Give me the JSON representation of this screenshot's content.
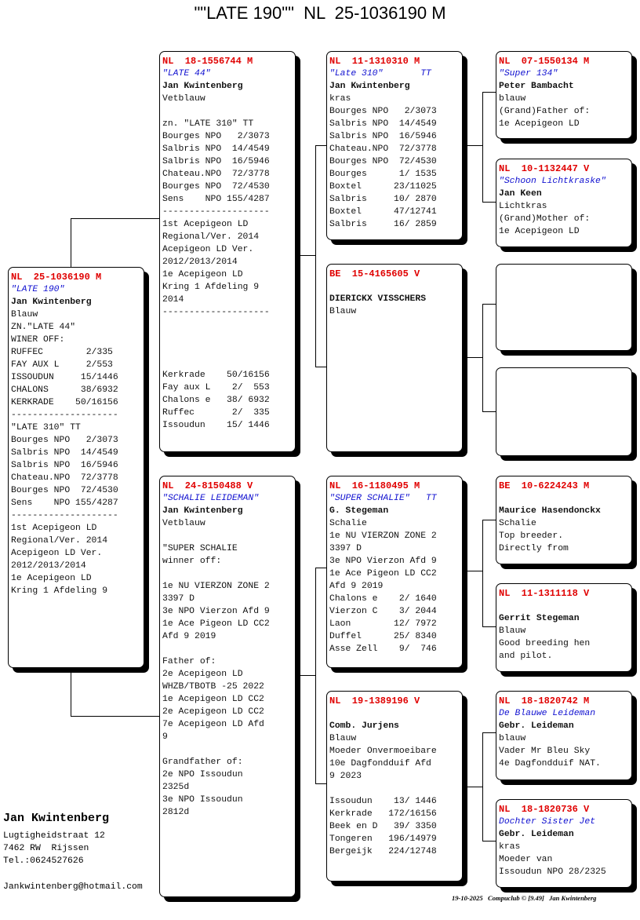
{
  "title": "\"\"LATE 190\"\"  NL  25-1036190 M",
  "boxes": [
    {
      "id": "subject",
      "header": "NL  25-1036190 M",
      "name": "\"LATE 190\"",
      "owner": "Jan Kwintenberg",
      "lines": [
        "Blauw",
        "ZN.\"LATE 44\"",
        "WINER OFF:",
        "RUFFEC        2/335",
        "FAY AUX L     2/553",
        "ISSOUDUN     15/1446",
        "CHALONS      38/6932",
        "KERKRADE    50/16156",
        "--------------------",
        "\"LATE 310\" TT",
        "Bourges NPO   2/3073",
        "Salbris NPO  14/4549",
        "Salbris NPO  16/5946",
        "Chateau.NPO  72/3778",
        "Bourges NPO  72/4530",
        "Sens    NPO 155/4287",
        "--------------------",
        "1st Acepigeon LD",
        "Regional/Ver. 2014",
        "Acepigeon LD Ver.",
        "2012/2013/2014",
        "1e Acepigeon LD",
        "Kring 1 Afdeling 9"
      ]
    },
    {
      "id": "sire",
      "header": "NL  18-1556744 M",
      "name": "\"LATE 44\"",
      "owner": "Jan Kwintenberg",
      "lines": [
        "Vetblauw",
        "",
        "zn. \"LATE 310\" TT",
        "Bourges NPO   2/3073",
        "Salbris NPO  14/4549",
        "Salbris NPO  16/5946",
        "Chateau.NPO  72/3778",
        "Bourges NPO  72/4530",
        "Sens    NPO 155/4287",
        "--------------------",
        "1st Acepigeon LD",
        "Regional/Ver. 2014",
        "Acepigeon LD Ver.",
        "2012/2013/2014",
        "1e Acepigeon LD",
        "Kring 1 Afdeling 9",
        "2014",
        "--------------------",
        "",
        "",
        "",
        "",
        "Kerkrade    50/16156",
        "Fay aux L    2/  553",
        "Chalons e   38/ 6932",
        "Ruffec       2/  335",
        "Issoudun    15/ 1446"
      ]
    },
    {
      "id": "dam",
      "header": "NL  24-8150488 V",
      "name": "\"SCHALIE LEIDEMAN\"",
      "owner": "Jan Kwintenberg",
      "lines": [
        "Vetblauw",
        "",
        "\"SUPER SCHALIE",
        "winner off:",
        "",
        "1e NU VIERZON ZONE 2",
        "3397 D",
        "3e NPO Vierzon Afd 9",
        "1e Ace Pigeon LD CC2",
        "Afd 9 2019",
        "",
        "Father of:",
        "2e Acepigeon LD",
        "WHZB/TBOTB -25 2022",
        "1e Acepigeon LD CC2",
        "2e Acepigeon LD CC2",
        "7e Acepigeon LD Afd",
        "9",
        "",
        "Grandfather of:",
        "2e NPO Issoudun",
        "2325d",
        "3e NPO Issoudun",
        "2812d"
      ]
    },
    {
      "id": "sire-sire",
      "header": "NL  11-1310310 M",
      "name": "\"Late 310\"       TT",
      "owner": "Jan Kwintenberg",
      "lines": [
        "kras",
        "Bourges NPO   2/3073",
        "Salbris NPO  14/4549",
        "Salbris NPO  16/5946",
        "Chateau.NPO  72/3778",
        "Bourges NPO  72/4530",
        "Bourges      1/ 1535",
        "Boxtel      23/11025",
        "Salbris     10/ 2870",
        "Boxtel      47/12741",
        "Salbris     16/ 2859"
      ]
    },
    {
      "id": "sire-dam",
      "header": "BE  15-4165605 V",
      "name": "",
      "owner": "DIERICKX VISSCHERS",
      "lines": [
        "Blauw"
      ]
    },
    {
      "id": "dam-sire",
      "header": "NL  16-1180495 M",
      "name": "\"SUPER SCHALIE\"   TT",
      "owner": "G. Stegeman",
      "lines": [
        "Schalie",
        "1e NU VIERZON ZONE 2",
        "3397 D",
        "3e NPO Vierzon Afd 9",
        "1e Ace Pigeon LD CC2",
        "Afd 9 2019",
        "Chalons e    2/ 1640",
        "Vierzon C    3/ 2044",
        "Laon        12/ 7972",
        "Duffel      25/ 8340",
        "Asse Zell    9/  746"
      ]
    },
    {
      "id": "dam-dam",
      "header": "NL  19-1389196 V",
      "name": "",
      "owner": "Comb. Jurjens",
      "lines": [
        "Blauw",
        "Moeder Onvermoeibare",
        "10e Dagfondduif Afd",
        "9 2023",
        "",
        "Issoudun    13/ 1446",
        "Kerkrade   172/16156",
        "Beek en D   39/ 3350",
        "Tongeren   196/14979",
        "Bergeijk   224/12748"
      ]
    },
    {
      "id": "sss",
      "header": "NL  07-1550134 M",
      "name": "\"Super 134\"",
      "owner": "Peter Bambacht",
      "lines": [
        "blauw",
        "(Grand)Father of:",
        "1e Acepigeon LD"
      ]
    },
    {
      "id": "ssd",
      "header": "NL  10-1132447 V",
      "name": "\"Schoon Lichtkraske\"",
      "owner": "Jan Keen",
      "lines": [
        "Lichtkras",
        "(Grand)Mother of:",
        "1e Acepigeon LD"
      ]
    },
    {
      "id": "sds",
      "header": "",
      "name": "",
      "owner": "",
      "lines": []
    },
    {
      "id": "sdd",
      "header": "",
      "name": "",
      "owner": "",
      "lines": []
    },
    {
      "id": "dss",
      "header": "BE  10-6224243 M",
      "name": "",
      "owner": "Maurice Hasendonckx",
      "lines": [
        "Schalie",
        "Top breeder.",
        "Directly from"
      ]
    },
    {
      "id": "dsd",
      "header": "NL  11-1311118 V",
      "name": "",
      "owner": "Gerrit Stegeman",
      "lines": [
        "Blauw",
        "Good breeding hen",
        "and pilot."
      ]
    },
    {
      "id": "dds",
      "header": "NL  18-1820742 M",
      "name": "De Blauwe Leideman",
      "owner": "Gebr. Leideman",
      "lines": [
        "blauw",
        "Vader Mr Bleu Sky",
        "4e Dagfondduif NAT."
      ]
    },
    {
      "id": "ddd",
      "header": "NL  18-1820736 V",
      "name": "Dochter Sister Jet",
      "owner": "Gebr. Leideman",
      "lines": [
        "kras",
        "Moeder van",
        "Issoudun NPO 28/2325"
      ]
    }
  ],
  "breeder": {
    "name": "Jan Kwintenberg",
    "street": "Lugtigheidstraat 12",
    "city": "7462 RW  Rijssen",
    "phone": "Tel.:0624527626",
    "email": "Jankwintenberg@hotmail.com"
  },
  "footer": "19-10-2025   Compuclub © [9.49]   Jan Kwintenberg"
}
